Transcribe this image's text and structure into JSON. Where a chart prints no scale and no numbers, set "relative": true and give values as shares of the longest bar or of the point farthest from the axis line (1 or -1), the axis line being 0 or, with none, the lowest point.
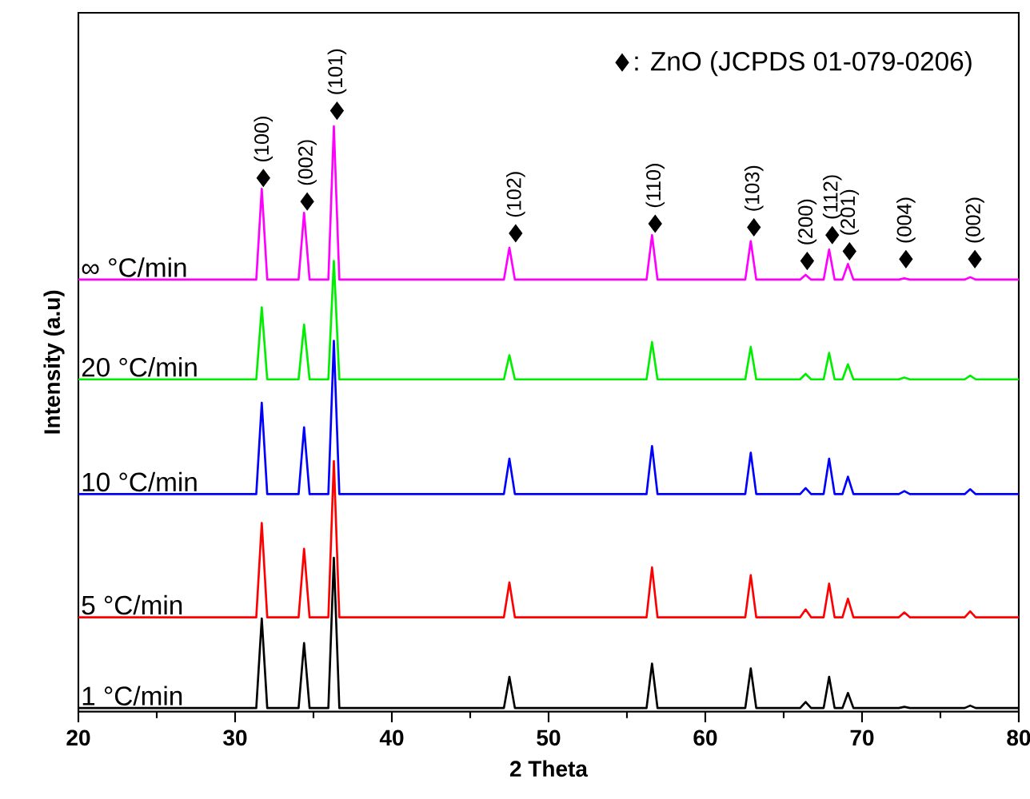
{
  "chart_data": {
    "type": "line",
    "relative": true,
    "xlabel": "2 Theta",
    "ylabel": "Intensity (a.u)",
    "xlim": [
      20,
      80
    ],
    "xticks": [
      20,
      30,
      40,
      50,
      60,
      70,
      80
    ],
    "legend": "top right",
    "line_style": "solid",
    "series": [
      {
        "name": "1 °C/min",
        "color": "#000000",
        "x": [
          20,
          31.35,
          31.7,
          32.05,
          34.05,
          34.4,
          34.75,
          35.95,
          36.3,
          36.65,
          47.15,
          47.5,
          47.85,
          56.25,
          56.6,
          56.95,
          62.55,
          62.9,
          63.25,
          66.05,
          66.4,
          66.75,
          67.55,
          67.9,
          68.25,
          68.75,
          69.1,
          69.45,
          72.35,
          72.7,
          73.05,
          76.55,
          76.9,
          77.25,
          80
        ],
        "values": [
          0.006,
          0.006,
          0.155,
          0.006,
          0.006,
          0.114,
          0.006,
          0.006,
          0.256,
          0.006,
          0.006,
          0.058,
          0.006,
          0.006,
          0.08,
          0.006,
          0.006,
          0.072,
          0.006,
          0.006,
          0.016,
          0.006,
          0.006,
          0.058,
          0.006,
          0.006,
          0.031,
          0.006,
          0.006,
          0.008,
          0.006,
          0.006,
          0.01,
          0.006,
          0.006
        ]
      },
      {
        "name": "5 °C/min",
        "color": "#ff0000",
        "x": [
          20,
          31.35,
          31.7,
          32.05,
          34.05,
          34.4,
          34.75,
          35.95,
          36.3,
          36.65,
          47.15,
          47.5,
          47.85,
          56.25,
          56.6,
          56.95,
          62.55,
          62.9,
          63.25,
          66.05,
          66.4,
          66.75,
          67.55,
          67.9,
          68.25,
          68.75,
          69.1,
          69.45,
          72.35,
          72.7,
          73.05,
          76.55,
          76.9,
          77.25,
          80
        ],
        "values": [
          0.157,
          0.157,
          0.314,
          0.157,
          0.157,
          0.271,
          0.157,
          0.157,
          0.417,
          0.157,
          0.157,
          0.215,
          0.157,
          0.157,
          0.24,
          0.157,
          0.157,
          0.227,
          0.157,
          0.157,
          0.17,
          0.157,
          0.157,
          0.213,
          0.157,
          0.157,
          0.188,
          0.157,
          0.157,
          0.165,
          0.157,
          0.157,
          0.167,
          0.157,
          0.157
        ]
      },
      {
        "name": "10 °C/min",
        "color": "#0000ff",
        "x": [
          20,
          31.35,
          31.7,
          32.05,
          34.05,
          34.4,
          34.75,
          35.95,
          36.3,
          36.65,
          47.15,
          47.5,
          47.85,
          56.25,
          56.6,
          56.95,
          62.55,
          62.9,
          63.25,
          66.05,
          66.4,
          66.75,
          67.55,
          67.9,
          68.25,
          68.75,
          69.1,
          69.45,
          72.35,
          72.7,
          73.05,
          76.55,
          76.9,
          77.25,
          80
        ],
        "values": [
          0.362,
          0.362,
          0.514,
          0.362,
          0.362,
          0.473,
          0.362,
          0.362,
          0.617,
          0.362,
          0.362,
          0.421,
          0.362,
          0.362,
          0.442,
          0.362,
          0.362,
          0.431,
          0.362,
          0.362,
          0.372,
          0.362,
          0.362,
          0.421,
          0.362,
          0.362,
          0.391,
          0.362,
          0.362,
          0.367,
          0.362,
          0.362,
          0.37,
          0.362,
          0.362
        ]
      },
      {
        "name": "20 °C/min",
        "color": "#00ee00",
        "x": [
          20,
          31.35,
          31.7,
          32.05,
          34.05,
          34.4,
          34.75,
          35.95,
          36.3,
          36.65,
          47.15,
          47.5,
          47.85,
          56.25,
          56.6,
          56.95,
          62.55,
          62.9,
          63.25,
          66.05,
          66.4,
          66.75,
          67.55,
          67.9,
          68.25,
          68.75,
          69.1,
          69.45,
          72.35,
          72.7,
          73.05,
          76.55,
          76.9,
          77.25,
          80
        ],
        "values": [
          0.553,
          0.553,
          0.673,
          0.553,
          0.553,
          0.644,
          0.553,
          0.553,
          0.75,
          0.553,
          0.553,
          0.593,
          0.553,
          0.553,
          0.615,
          0.553,
          0.553,
          0.607,
          0.553,
          0.553,
          0.562,
          0.553,
          0.553,
          0.597,
          0.553,
          0.553,
          0.578,
          0.553,
          0.553,
          0.556,
          0.553,
          0.553,
          0.559,
          0.553,
          0.553
        ]
      },
      {
        "name": "∞ °C/min",
        "color": "#ff00ff",
        "x": [
          20,
          31.35,
          31.7,
          32.05,
          34.05,
          34.4,
          34.75,
          35.95,
          36.3,
          36.65,
          47.15,
          47.5,
          47.85,
          56.25,
          56.6,
          56.95,
          62.55,
          62.9,
          63.25,
          66.05,
          66.4,
          66.75,
          67.55,
          67.9,
          68.25,
          68.75,
          69.1,
          69.45,
          72.35,
          72.7,
          73.05,
          76.55,
          76.9,
          77.25,
          80
        ],
        "values": [
          0.719,
          0.719,
          0.87,
          0.719,
          0.719,
          0.83,
          0.719,
          0.719,
          0.974,
          0.719,
          0.719,
          0.772,
          0.719,
          0.719,
          0.793,
          0.719,
          0.719,
          0.783,
          0.719,
          0.719,
          0.727,
          0.719,
          0.719,
          0.769,
          0.719,
          0.719,
          0.745,
          0.719,
          0.719,
          0.721,
          0.719,
          0.719,
          0.723,
          0.719,
          0.719
        ]
      },
      {
        "name": ": ZnO (JCPDS 01-079-0206)",
        "type": "scatter",
        "marker": "diamond",
        "color": "#000000",
        "x": [
          31.8,
          34.6,
          36.5,
          47.9,
          56.8,
          63.1,
          66.5,
          68.1,
          69.2,
          72.8,
          77.2
        ],
        "values": [
          0.888,
          0.849,
          1,
          0.796,
          0.812,
          0.806,
          0.75,
          0.793,
          0.766,
          0.753,
          0.753
        ]
      }
    ],
    "annotations": [
      {
        "text": "(100)",
        "x": 31.8,
        "y": 0.888
      },
      {
        "text": "(002)",
        "x": 34.6,
        "y": 0.849
      },
      {
        "text": "(101)",
        "x": 36.5,
        "y": 1
      },
      {
        "text": "(102)",
        "x": 47.9,
        "y": 0.796
      },
      {
        "text": "(110)",
        "x": 56.8,
        "y": 0.812
      },
      {
        "text": "(103)",
        "x": 63.1,
        "y": 0.806
      },
      {
        "text": "(200)",
        "x": 66.5,
        "y": 0.75
      },
      {
        "text": "(112)",
        "x": 68.1,
        "y": 0.793
      },
      {
        "text": "(201)",
        "x": 69.2,
        "y": 0.766
      },
      {
        "text": "(004)",
        "x": 72.8,
        "y": 0.753
      },
      {
        "text": "(002)",
        "x": 77.2,
        "y": 0.753
      }
    ]
  }
}
